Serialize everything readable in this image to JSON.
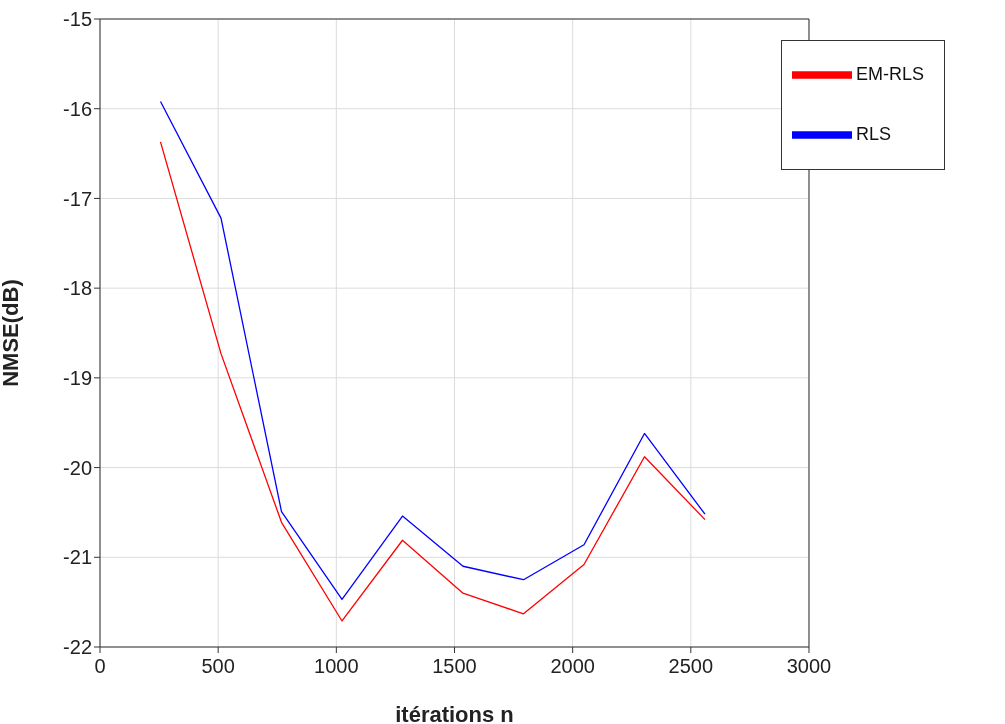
{
  "chart_data": {
    "type": "line",
    "xlabel": "itérations n",
    "ylabel": "NMSE(dB)",
    "x": [
      256,
      512,
      768,
      1024,
      1280,
      1536,
      1792,
      2048,
      2304,
      2560
    ],
    "series": [
      {
        "name": "EM-RLS",
        "color": "#ff0000",
        "values": [
          -16.37,
          -18.73,
          -20.61,
          -21.71,
          -20.81,
          -21.4,
          -21.63,
          -21.08,
          -19.88,
          -20.58
        ]
      },
      {
        "name": "RLS",
        "color": "#0000ff",
        "values": [
          -15.92,
          -17.22,
          -20.49,
          -21.47,
          -20.54,
          -21.1,
          -21.25,
          -20.86,
          -19.62,
          -20.52
        ]
      }
    ],
    "xlim": [
      0,
      3000
    ],
    "xticks": [
      0,
      500,
      1000,
      1500,
      2000,
      2500,
      3000
    ],
    "ylim": [
      -22,
      -15
    ],
    "yticks": [
      -22,
      -21,
      -20,
      -19,
      -18,
      -17,
      -16,
      -15
    ],
    "grid": true,
    "legend": "top right",
    "marker": "none",
    "line_style": "solid"
  }
}
